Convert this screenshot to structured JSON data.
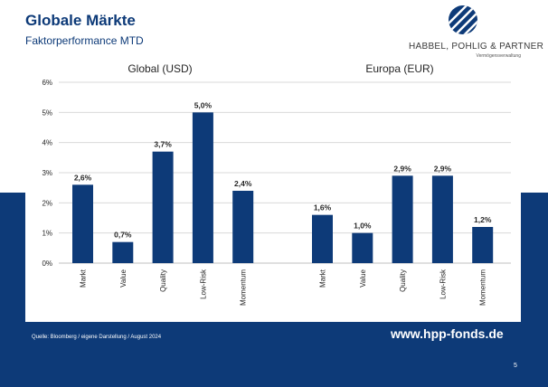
{
  "slide": {
    "title": "Globale Märkte",
    "subtitle": "Faktorperformance MTD",
    "source": "Quelle: Bloomberg / eigene Darstellung / August 2024",
    "url": "www.hpp-fonds.de",
    "page_number": "5"
  },
  "logo": {
    "name": "HABBEL, POHLIG & PARTNER",
    "sub": "Vermögensverwaltung",
    "icon": "diagonal-stripes-circle-logo"
  },
  "colors": {
    "brand": "#0d3a78",
    "bar": "#0d3a78",
    "grid": "#d9d9d9"
  },
  "chart_data": {
    "type": "bar",
    "ylim": [
      0,
      6
    ],
    "yticks": [
      0,
      1,
      2,
      3,
      4,
      5,
      6
    ],
    "ytick_labels": [
      "0%",
      "1%",
      "2%",
      "3%",
      "4%",
      "5%",
      "6%"
    ],
    "grid": true,
    "groups": [
      {
        "title": "Global (USD)",
        "categories": [
          "Markt",
          "Value",
          "Quality",
          "Low-Risk",
          "Momentum"
        ],
        "values": [
          2.6,
          0.7,
          3.7,
          5.0,
          2.4
        ],
        "labels": [
          "2,6%",
          "0,7%",
          "3,7%",
          "5,0%",
          "2,4%"
        ]
      },
      {
        "title": "Europa (EUR)",
        "categories": [
          "Markt",
          "Value",
          "Quality",
          "Low-Risk",
          "Momentum"
        ],
        "values": [
          1.6,
          1.0,
          2.9,
          2.9,
          1.2
        ],
        "labels": [
          "1,6%",
          "1,0%",
          "2,9%",
          "2,9%",
          "1,2%"
        ]
      }
    ]
  }
}
